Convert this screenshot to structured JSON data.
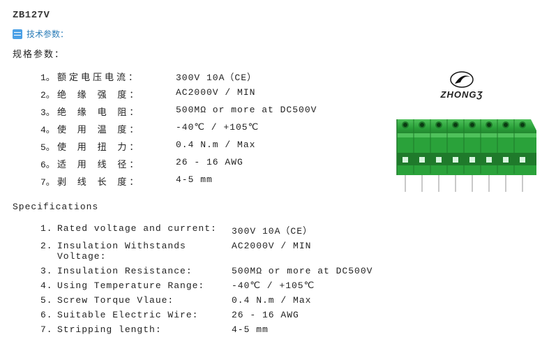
{
  "title": "ZB127V",
  "tech_params_label": "技术参数：",
  "spec_params_label": "规格参数：",
  "cn_specs": [
    {
      "num": "1。",
      "label": "额定电压电流：",
      "value": "300V 10A（CE）"
    },
    {
      "num": "2。",
      "label": "绝 缘 强 度：",
      "value": "AC2000V / MIN"
    },
    {
      "num": "3。",
      "label": "绝 缘 电 阻：",
      "value": "500MΩ  or more at DC500V"
    },
    {
      "num": "4。",
      "label": "使 用 温 度：",
      "value": "-40℃ / +105℃"
    },
    {
      "num": "5。",
      "label": "使 用 扭 力：",
      "value": "0.4 N.m / Max"
    },
    {
      "num": "6。",
      "label": "适 用 线 径：",
      "value": "26 - 16 AWG"
    },
    {
      "num": "7。",
      "label": "剥 线 长 度：",
      "value": "4-5 mm"
    }
  ],
  "en_section_label": "Specifications",
  "en_specs": [
    {
      "num": "1.",
      "label": "Rated voltage and current:",
      "value": "300V 10A（CE）"
    },
    {
      "num": "2.",
      "label": "Insulation Withstands Voltage:",
      "value": "AC2000V / MIN"
    },
    {
      "num": "3.",
      "label": "Insulation Resistance:",
      "value": "500MΩ  or more at DC500V"
    },
    {
      "num": "4.",
      "label": "Using Temperature Range:",
      "value": "-40℃ / +105℃"
    },
    {
      "num": "5.",
      "label": "Screw Torque Vlaue:",
      "value": "0.4 N.m / Max"
    },
    {
      "num": "6.",
      "label": "Suitable Electric Wire:",
      "value": "26 - 16 AWG"
    },
    {
      "num": "7.",
      "label": "Stripping length:",
      "value": "4-5 mm"
    }
  ],
  "brand_text": "ZHONGƷ",
  "terminal": {
    "poles": 8,
    "body_color": "#2aa23a",
    "body_dark": "#1f7a2b",
    "body_light": "#4fc15b",
    "pin_color": "#c9c9c9",
    "highlight": "#d8f5df"
  }
}
